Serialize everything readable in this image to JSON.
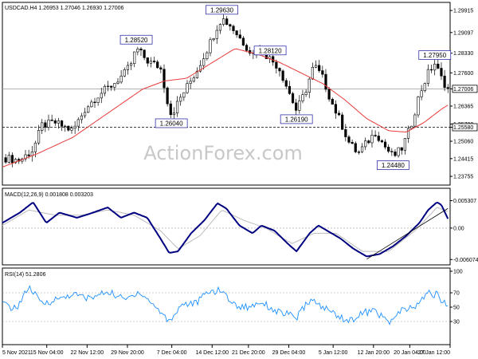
{
  "chart_data": {
    "type": "candlestick",
    "watermark": "ActionForex.com",
    "price_panel": {
      "title": "USDCAD.H4  1.26953 1.27046 1.26930 1.27006",
      "ylim": [
        1.2355,
        1.2995
      ],
      "y_ticks": [
        "1.29915",
        "1.29097",
        "1.28330",
        "1.27600",
        "1.27006",
        "1.26365",
        "1.25700",
        "1.25580",
        "1.25060",
        "1.24415",
        "1.23755"
      ],
      "y_tick_values": [
        1.29915,
        1.29097,
        1.2833,
        1.276,
        1.27006,
        1.26365,
        1.257,
        1.2558,
        1.2506,
        1.24415,
        1.23755
      ],
      "current_price": 1.27006,
      "support_level": 1.2558,
      "series": [
        {
          "type": "candlestick",
          "color": "#000000"
        },
        {
          "type": "line",
          "color": "#e63a3a"
        }
      ],
      "price_path": [
        {
          "t": 0,
          "v": 1.2445
        },
        {
          "t": 4,
          "v": 1.2435
        },
        {
          "t": 7,
          "v": 1.2475
        },
        {
          "t": 9,
          "v": 1.2565
        },
        {
          "t": 12,
          "v": 1.2575
        },
        {
          "t": 16,
          "v": 1.2545
        },
        {
          "t": 19,
          "v": 1.263
        },
        {
          "t": 22,
          "v": 1.268
        },
        {
          "t": 25,
          "v": 1.2715
        },
        {
          "t": 28,
          "v": 1.276
        },
        {
          "t": 29.5,
          "v": 1.28
        },
        {
          "t": 30.5,
          "v": 1.2852
        },
        {
          "t": 33,
          "v": 1.2805
        },
        {
          "t": 36,
          "v": 1.278
        },
        {
          "t": 38,
          "v": 1.2625
        },
        {
          "t": 38.5,
          "v": 1.2604
        },
        {
          "t": 41,
          "v": 1.268
        },
        {
          "t": 44,
          "v": 1.276
        },
        {
          "t": 47,
          "v": 1.286
        },
        {
          "t": 49,
          "v": 1.2935
        },
        {
          "t": 50,
          "v": 1.2963
        },
        {
          "t": 52,
          "v": 1.2935
        },
        {
          "t": 55,
          "v": 1.287
        },
        {
          "t": 57,
          "v": 1.283
        },
        {
          "t": 59,
          "v": 1.2845
        },
        {
          "t": 61,
          "v": 1.2812
        },
        {
          "t": 63,
          "v": 1.278
        },
        {
          "t": 65,
          "v": 1.27
        },
        {
          "t": 67,
          "v": 1.2619
        },
        {
          "t": 69,
          "v": 1.269
        },
        {
          "t": 71,
          "v": 1.279
        },
        {
          "t": 73,
          "v": 1.274
        },
        {
          "t": 75,
          "v": 1.265
        },
        {
          "t": 77,
          "v": 1.258
        },
        {
          "t": 79,
          "v": 1.25
        },
        {
          "t": 81,
          "v": 1.246
        },
        {
          "t": 83,
          "v": 1.25
        },
        {
          "t": 85,
          "v": 1.254
        },
        {
          "t": 87,
          "v": 1.249
        },
        {
          "t": 89,
          "v": 1.2448
        },
        {
          "t": 91,
          "v": 1.248
        },
        {
          "t": 93,
          "v": 1.256
        },
        {
          "t": 95,
          "v": 1.268
        },
        {
          "t": 97,
          "v": 1.276
        },
        {
          "t": 98.5,
          "v": 1.2795
        },
        {
          "t": 100,
          "v": 1.274
        },
        {
          "t": 101.5,
          "v": 1.27
        }
      ],
      "ma_path": [
        {
          "t": 0,
          "v": 1.241
        },
        {
          "t": 8,
          "v": 1.246
        },
        {
          "t": 16,
          "v": 1.252
        },
        {
          "t": 24,
          "v": 1.261
        },
        {
          "t": 32,
          "v": 1.27
        },
        {
          "t": 37,
          "v": 1.273
        },
        {
          "t": 42,
          "v": 1.274
        },
        {
          "t": 48,
          "v": 1.28
        },
        {
          "t": 53,
          "v": 1.285
        },
        {
          "t": 58,
          "v": 1.283
        },
        {
          "t": 63,
          "v": 1.28
        },
        {
          "t": 68,
          "v": 1.276
        },
        {
          "t": 73,
          "v": 1.272
        },
        {
          "t": 78,
          "v": 1.266
        },
        {
          "t": 83,
          "v": 1.259
        },
        {
          "t": 88,
          "v": 1.2545
        },
        {
          "t": 92,
          "v": 1.254
        },
        {
          "t": 96,
          "v": 1.2575
        },
        {
          "t": 100,
          "v": 1.2625
        },
        {
          "t": 101.5,
          "v": 1.264
        }
      ],
      "callouts": [
        {
          "label": "1.28520",
          "t": 30.5,
          "v": 1.2852,
          "pos": "above"
        },
        {
          "label": "1.26040",
          "t": 38.5,
          "v": 1.2604,
          "pos": "below"
        },
        {
          "label": "1.29630",
          "t": 50,
          "v": 1.2963,
          "pos": "above"
        },
        {
          "label": "1.28120",
          "t": 61,
          "v": 1.2812,
          "pos": "above"
        },
        {
          "label": "1.26190",
          "t": 67,
          "v": 1.2619,
          "pos": "below"
        },
        {
          "label": "1.24480",
          "t": 89,
          "v": 1.2448,
          "pos": "below"
        },
        {
          "label": "1.27950",
          "t": 98.5,
          "v": 1.2795,
          "pos": "above"
        }
      ]
    },
    "macd_panel": {
      "title": "MACD(12,26,9) 0.001808 0.003203",
      "ylim": [
        -0.0068,
        0.006
      ],
      "y_ticks": [
        "0.005307",
        "0.00",
        "-0.006074"
      ],
      "y_tick_values": [
        0.005307,
        0.0,
        -0.006074
      ],
      "series": [
        {
          "type": "line",
          "color": "#000080"
        },
        {
          "type": "line",
          "color": "#bbbbbb"
        }
      ],
      "macd_path": [
        {
          "t": 0,
          "v": 0.001
        },
        {
          "t": 4,
          "v": 0.003
        },
        {
          "t": 7,
          "v": 0.005
        },
        {
          "t": 10,
          "v": 0.001
        },
        {
          "t": 13,
          "v": 0.003
        },
        {
          "t": 17,
          "v": 0.002
        },
        {
          "t": 20,
          "v": 0.0028
        },
        {
          "t": 24,
          "v": 0.004
        },
        {
          "t": 27,
          "v": 0.002
        },
        {
          "t": 30,
          "v": 0.003
        },
        {
          "t": 33,
          "v": 0.002
        },
        {
          "t": 36,
          "v": -0.002
        },
        {
          "t": 38,
          "v": -0.0048
        },
        {
          "t": 40,
          "v": -0.0045
        },
        {
          "t": 43,
          "v": -0.001
        },
        {
          "t": 46,
          "v": 0.0015
        },
        {
          "t": 49,
          "v": 0.0048
        },
        {
          "t": 51,
          "v": 0.0038
        },
        {
          "t": 54,
          "v": 0.0005
        },
        {
          "t": 57,
          "v": -0.001
        },
        {
          "t": 59,
          "v": 0.0005
        },
        {
          "t": 62,
          "v": -0.0005
        },
        {
          "t": 65,
          "v": -0.003
        },
        {
          "t": 67,
          "v": -0.0045
        },
        {
          "t": 70,
          "v": -0.001
        },
        {
          "t": 72,
          "v": 0.0005
        },
        {
          "t": 74,
          "v": -0.0005
        },
        {
          "t": 77,
          "v": -0.002
        },
        {
          "t": 80,
          "v": -0.004
        },
        {
          "t": 83,
          "v": -0.0055
        },
        {
          "t": 86,
          "v": -0.005
        },
        {
          "t": 89,
          "v": -0.0035
        },
        {
          "t": 92,
          "v": -0.0015
        },
        {
          "t": 95,
          "v": 0.001
        },
        {
          "t": 97,
          "v": 0.0035
        },
        {
          "t": 99,
          "v": 0.005
        },
        {
          "t": 100,
          "v": 0.0045
        },
        {
          "t": 101.5,
          "v": 0.0018
        }
      ],
      "signal_path": [
        {
          "t": 0,
          "v": 0.0005
        },
        {
          "t": 6,
          "v": 0.0035
        },
        {
          "t": 12,
          "v": 0.0025
        },
        {
          "t": 18,
          "v": 0.0025
        },
        {
          "t": 24,
          "v": 0.0035
        },
        {
          "t": 30,
          "v": 0.0025
        },
        {
          "t": 36,
          "v": -0.0005
        },
        {
          "t": 40,
          "v": -0.004
        },
        {
          "t": 45,
          "v": -0.0015
        },
        {
          "t": 50,
          "v": 0.0035
        },
        {
          "t": 55,
          "v": 0.0015
        },
        {
          "t": 60,
          "v": 0.0
        },
        {
          "t": 66,
          "v": -0.003
        },
        {
          "t": 71,
          "v": -0.001
        },
        {
          "t": 76,
          "v": -0.001
        },
        {
          "t": 82,
          "v": -0.0045
        },
        {
          "t": 88,
          "v": -0.0045
        },
        {
          "t": 94,
          "v": -0.0005
        },
        {
          "t": 99,
          "v": 0.004
        },
        {
          "t": 101.5,
          "v": 0.0032
        }
      ],
      "trendline": [
        {
          "t": 83,
          "v": -0.006
        },
        {
          "t": 101.5,
          "v": 0.0038
        }
      ]
    },
    "rsi_panel": {
      "title": "RSI(14) 51.2806",
      "ylim": [
        0,
        100
      ],
      "y_ticks": [
        "100",
        "70",
        "50",
        "30"
      ],
      "y_tick_values": [
        100,
        70,
        50,
        30
      ],
      "series": [
        {
          "type": "line",
          "color": "#1e90ff"
        }
      ],
      "rsi_path": [
        {
          "t": 0,
          "v": 55
        },
        {
          "t": 3,
          "v": 47
        },
        {
          "t": 6,
          "v": 78
        },
        {
          "t": 9,
          "v": 55
        },
        {
          "t": 12,
          "v": 60
        },
        {
          "t": 16,
          "v": 68
        },
        {
          "t": 20,
          "v": 62
        },
        {
          "t": 24,
          "v": 72
        },
        {
          "t": 28,
          "v": 60
        },
        {
          "t": 31,
          "v": 72
        },
        {
          "t": 35,
          "v": 50
        },
        {
          "t": 38,
          "v": 30
        },
        {
          "t": 41,
          "v": 55
        },
        {
          "t": 44,
          "v": 55
        },
        {
          "t": 47,
          "v": 72
        },
        {
          "t": 50,
          "v": 73
        },
        {
          "t": 53,
          "v": 52
        },
        {
          "t": 56,
          "v": 50
        },
        {
          "t": 59,
          "v": 58
        },
        {
          "t": 62,
          "v": 45
        },
        {
          "t": 65,
          "v": 40
        },
        {
          "t": 67,
          "v": 35
        },
        {
          "t": 70,
          "v": 60
        },
        {
          "t": 73,
          "v": 50
        },
        {
          "t": 76,
          "v": 40
        },
        {
          "t": 79,
          "v": 30
        },
        {
          "t": 82,
          "v": 42
        },
        {
          "t": 85,
          "v": 45
        },
        {
          "t": 88,
          "v": 28
        },
        {
          "t": 91,
          "v": 45
        },
        {
          "t": 94,
          "v": 50
        },
        {
          "t": 97,
          "v": 70
        },
        {
          "t": 99,
          "v": 67
        },
        {
          "t": 101.5,
          "v": 51
        }
      ]
    },
    "x_axis": {
      "range": [
        0,
        102
      ],
      "labels": [
        {
          "t": 1,
          "label": "5 Nov 2021"
        },
        {
          "t": 12,
          "label": "15 Nov 04:00"
        },
        {
          "t": 22,
          "label": "22 Nov 12:00"
        },
        {
          "t": 32,
          "label": "29 Nov 20:00"
        },
        {
          "t": 43,
          "label": "7 Dec 04:00"
        },
        {
          "t": 53,
          "label": "14 Dec 12:00"
        },
        {
          "t": 62,
          "label": "21 Dec 20:00"
        },
        {
          "t": 72,
          "label": "29 Dec 04:00"
        },
        {
          "t": 83,
          "label": "5 Jan 12:00"
        },
        {
          "t": 93,
          "label": "12 Jan 20:00"
        },
        {
          "t": 102,
          "label": "20 Jan 04:00"
        },
        {
          "t": 112,
          "label": "27 Jan 12:00"
        }
      ]
    }
  }
}
